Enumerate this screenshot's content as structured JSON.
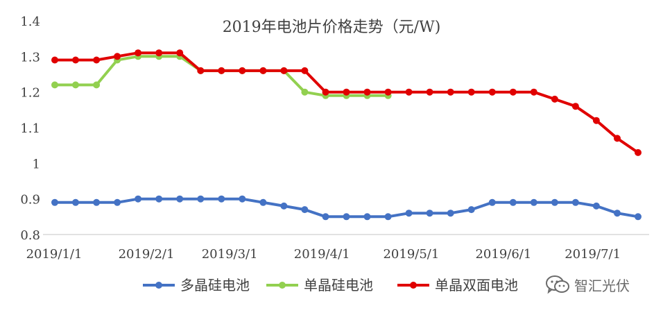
{
  "chart_data": {
    "type": "line",
    "title": "2019年电池片价格走势（元/W)",
    "x_tick_labels": [
      "2019/1/1",
      "2019/2/1",
      "2019/3/1",
      "2019/4/1",
      "2019/5/1",
      "2019/6/1",
      "2019/7/1"
    ],
    "x": [
      "2019/1/1",
      "2019/1/8",
      "2019/1/15",
      "2019/1/22",
      "2019/1/29",
      "2019/2/5",
      "2019/2/12",
      "2019/2/19",
      "2019/2/26",
      "2019/3/5",
      "2019/3/12",
      "2019/3/19",
      "2019/3/26",
      "2019/4/2",
      "2019/4/9",
      "2019/4/16",
      "2019/4/23",
      "2019/4/30",
      "2019/5/7",
      "2019/5/14",
      "2019/5/21",
      "2019/5/28",
      "2019/6/4",
      "2019/6/11",
      "2019/6/18",
      "2019/6/25",
      "2019/7/2",
      "2019/7/9",
      "2019/7/16"
    ],
    "ylim": [
      0.8,
      1.4
    ],
    "y_ticks": [
      "0.8",
      "0.9",
      "1",
      "1.1",
      "1.2",
      "1.3",
      "1.4"
    ],
    "grid": false,
    "legend_position": "bottom",
    "series": [
      {
        "name": "多晶硅电池",
        "color": "#4472C4",
        "values": [
          0.89,
          0.89,
          0.89,
          0.89,
          0.9,
          0.9,
          0.9,
          0.9,
          0.9,
          0.9,
          0.89,
          0.88,
          0.87,
          0.85,
          0.85,
          0.85,
          0.85,
          0.86,
          0.86,
          0.86,
          0.87,
          0.89,
          0.89,
          0.89,
          0.89,
          0.89,
          0.88,
          0.86,
          0.85
        ]
      },
      {
        "name": "单晶硅电池",
        "color": "#92D050",
        "values": [
          1.22,
          1.22,
          1.22,
          1.29,
          1.3,
          1.3,
          1.3,
          1.26,
          1.26,
          1.26,
          1.26,
          1.26,
          1.2,
          1.19,
          1.19,
          1.19,
          1.19,
          null,
          null,
          null,
          null,
          null,
          null,
          null,
          null,
          null,
          null,
          null,
          null
        ]
      },
      {
        "name": "单晶双面电池",
        "color": "#E00000",
        "values": [
          1.29,
          1.29,
          1.29,
          1.3,
          1.31,
          1.31,
          1.31,
          1.26,
          1.26,
          1.26,
          1.26,
          1.26,
          1.26,
          1.2,
          1.2,
          1.2,
          1.2,
          1.2,
          1.2,
          1.2,
          1.2,
          1.2,
          1.2,
          1.2,
          1.18,
          1.16,
          1.12,
          1.07,
          1.03
        ]
      }
    ]
  },
  "watermark": {
    "icon": "wechat-icon",
    "text": "智汇光伏"
  }
}
